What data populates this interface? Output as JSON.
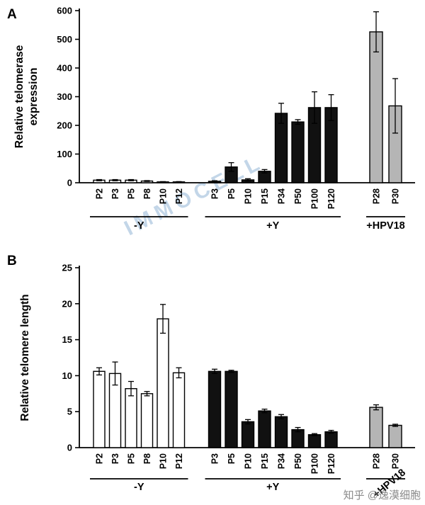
{
  "page": {
    "watermark": "IMMOCELL",
    "watermark_color": "#b9cfe4",
    "credit": "知乎 @逸漠细胞",
    "credit_color": "#8a8a8a",
    "axis_color": "#000000",
    "background_color": "#ffffff"
  },
  "chart_data": [
    {
      "type": "bar",
      "panel_label": "A",
      "ylabel": "Relative telomerase expression",
      "ylabel_lines": [
        "Relative telomerase",
        "expression"
      ],
      "ylim": [
        0,
        600
      ],
      "yticks": [
        0,
        100,
        200,
        300,
        400,
        500,
        600
      ],
      "grid": false,
      "legend": "none",
      "groups": [
        {
          "label": "-Y",
          "bar_fill": "#ffffff",
          "bar_stroke": "#000000",
          "categories": [
            "P2",
            "P3",
            "P5",
            "P8",
            "P10",
            "P12"
          ],
          "values": [
            9,
            9,
            9,
            6,
            3,
            3
          ],
          "errors": [
            2,
            2,
            2,
            1.5,
            1,
            1
          ]
        },
        {
          "label": "+Y",
          "bar_fill": "#111111",
          "bar_stroke": "#000000",
          "categories": [
            "P3",
            "P5",
            "P10",
            "P15",
            "P34",
            "P50",
            "P100",
            "P120"
          ],
          "values": [
            5,
            55,
            10,
            40,
            242,
            212,
            262,
            262
          ],
          "errors": [
            2,
            15,
            4,
            6,
            35,
            8,
            55,
            45
          ]
        },
        {
          "label": "+HPV18",
          "bar_fill": "#b5b5b5",
          "bar_stroke": "#000000",
          "categories": [
            "P28",
            "P30"
          ],
          "values": [
            526,
            268
          ],
          "errors": [
            70,
            95
          ]
        }
      ]
    },
    {
      "type": "bar",
      "panel_label": "B",
      "ylabel": "Relative telomere length",
      "ylabel_lines": [
        "Relative telomere length"
      ],
      "ylim": [
        0,
        25
      ],
      "yticks": [
        0,
        5,
        10,
        15,
        20,
        25
      ],
      "grid": false,
      "legend": "none",
      "groups": [
        {
          "label": "-Y",
          "bar_fill": "#ffffff",
          "bar_stroke": "#000000",
          "categories": [
            "P2",
            "P3",
            "P5",
            "P8",
            "P10",
            "P12"
          ],
          "values": [
            10.6,
            10.3,
            8.2,
            7.5,
            17.9,
            10.4
          ],
          "errors": [
            0.5,
            1.6,
            1.0,
            0.3,
            2.0,
            0.7
          ]
        },
        {
          "label": "+Y",
          "bar_fill": "#111111",
          "bar_stroke": "#000000",
          "categories": [
            "P3",
            "P5",
            "P10",
            "P15",
            "P34",
            "P50",
            "P100",
            "P120"
          ],
          "values": [
            10.6,
            10.6,
            3.6,
            5.1,
            4.3,
            2.5,
            1.8,
            2.2
          ],
          "errors": [
            0.3,
            0.15,
            0.3,
            0.25,
            0.3,
            0.3,
            0.15,
            0.2
          ]
        },
        {
          "label": "+HPV18",
          "label_rotated": true,
          "bar_fill": "#b5b5b5",
          "bar_stroke": "#000000",
          "categories": [
            "P28",
            "P30"
          ],
          "values": [
            5.6,
            3.1
          ],
          "errors": [
            0.35,
            0.15
          ]
        }
      ]
    }
  ]
}
